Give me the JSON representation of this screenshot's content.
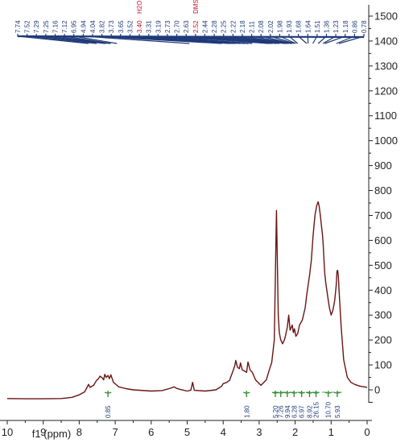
{
  "chart_data": {
    "type": "line",
    "title": "",
    "xlabel": "f1 (ppm)",
    "ylabel": "",
    "xlim": [
      10,
      0
    ],
    "ylim": [
      -50,
      1550
    ],
    "x_ticks": [
      "10",
      "9",
      "8",
      "7",
      "6",
      "5",
      "4",
      "3",
      "2",
      "1",
      "0"
    ],
    "y_ticks": [
      "0",
      "100",
      "200",
      "300",
      "400",
      "500",
      "600",
      "700",
      "800",
      "900",
      "1000",
      "1100",
      "1200",
      "1300",
      "1400",
      "1500"
    ],
    "series": [
      {
        "color": "#6b1414",
        "x": [
          10.0,
          9.5,
          9.0,
          8.5,
          8.2,
          8.0,
          7.85,
          7.8,
          7.74,
          7.7,
          7.6,
          7.52,
          7.48,
          7.42,
          7.36,
          7.32,
          7.29,
          7.25,
          7.2,
          7.16,
          7.12,
          7.05,
          6.95,
          6.9,
          6.7,
          6.5,
          6.0,
          5.7,
          5.5,
          5.36,
          5.3,
          5.2,
          5.0,
          4.9,
          4.85,
          4.8,
          4.5,
          4.2,
          4.04,
          4.0,
          3.9,
          3.82,
          3.78,
          3.73,
          3.68,
          3.65,
          3.6,
          3.55,
          3.52,
          3.47,
          3.4,
          3.35,
          3.31,
          3.25,
          3.19,
          3.1,
          2.95,
          2.8,
          2.73,
          2.65,
          2.58,
          2.55,
          2.52,
          2.5,
          2.47,
          2.44,
          2.4,
          2.35,
          2.3,
          2.28,
          2.25,
          2.22,
          2.18,
          2.14,
          2.11,
          2.08,
          2.05,
          2.02,
          1.98,
          1.93,
          1.88,
          1.8,
          1.72,
          1.68,
          1.64,
          1.6,
          1.55,
          1.5,
          1.45,
          1.4,
          1.36,
          1.33,
          1.3,
          1.27,
          1.24,
          1.22,
          1.2,
          1.18,
          1.15,
          1.1,
          1.05,
          1.0,
          0.95,
          0.9,
          0.86,
          0.84,
          0.82,
          0.8,
          0.78,
          0.72,
          0.65,
          0.55,
          0.45,
          0.35,
          0.2,
          0.0
        ],
        "y": [
          -35,
          -36,
          -36,
          -35,
          -30,
          -20,
          -8,
          5,
          22,
          10,
          18,
          38,
          42,
          55,
          48,
          40,
          62,
          50,
          58,
          45,
          60,
          30,
          18,
          12,
          5,
          0,
          -5,
          -3,
          5,
          12,
          6,
          2,
          -5,
          -2,
          30,
          -2,
          -5,
          0,
          15,
          25,
          30,
          38,
          55,
          75,
          95,
          118,
          90,
          85,
          108,
          80,
          75,
          70,
          112,
          80,
          70,
          40,
          18,
          40,
          75,
          110,
          200,
          450,
          720,
          550,
          300,
          230,
          200,
          185,
          200,
          210,
          230,
          250,
          300,
          240,
          250,
          260,
          230,
          245,
          215,
          225,
          260,
          280,
          330,
          380,
          420,
          460,
          520,
          620,
          700,
          740,
          755,
          735,
          700,
          660,
          620,
          580,
          520,
          470,
          430,
          380,
          330,
          300,
          320,
          360,
          420,
          475,
          480,
          460,
          400,
          250,
          120,
          50,
          30,
          22,
          15,
          10
        ]
      }
    ],
    "peak_labels": {
      "aromatic": [
        "7.74",
        "7.52",
        "7.29",
        "7.25",
        "7.16",
        "7.12",
        "6.95"
      ],
      "aliphatic_left": [
        "4.94",
        "4.04",
        "3.82",
        "3.73",
        "3.65",
        "3.52"
      ],
      "h2o_shift": "3.40",
      "h2o_name": "H2O",
      "mid": [
        "3.31",
        "3.19",
        "2.73",
        "2.70",
        "2.63"
      ],
      "dmso_shift": "2.52",
      "dmso_name": "DMSO",
      "aliphatic_right": [
        "2.44",
        "2.28",
        "2.25",
        "2.22",
        "2.18",
        "2.11",
        "2.08",
        "2.02",
        "1.98",
        "1.93",
        "1.68",
        "1.64",
        "1.51",
        "1.36",
        "1.23",
        "1.18",
        "0.86",
        "0.78"
      ],
      "color": "#1f3a7a",
      "solvent_color": "#c8102e"
    },
    "integrals": {
      "labels": [
        "0.85",
        "1.80",
        "5.20",
        "7.26",
        "9.94",
        "6.28",
        "6.97",
        "8.92",
        "26.15",
        "10.70",
        "5.93"
      ],
      "positions": [
        7.2,
        3.35,
        2.55,
        2.4,
        2.22,
        2.03,
        1.82,
        1.6,
        1.42,
        1.08,
        0.83
      ],
      "color": "#2e8b2e",
      "label_color": "#1f3a7a"
    }
  }
}
